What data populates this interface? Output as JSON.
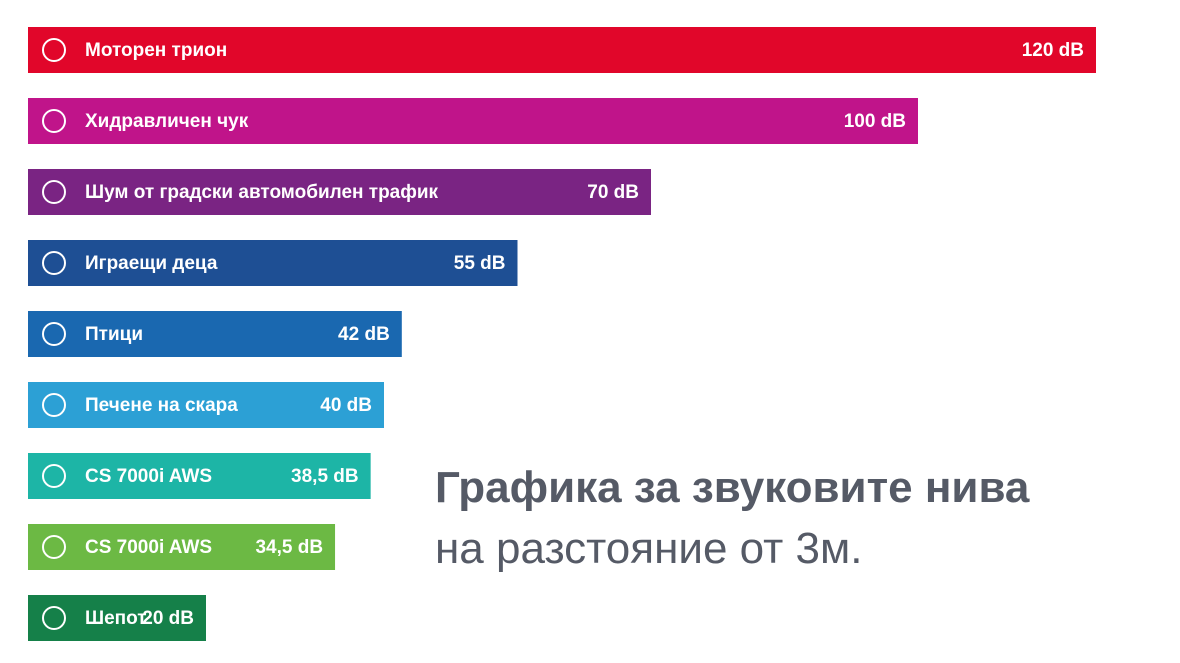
{
  "chart_data": {
    "type": "bar",
    "orientation": "horizontal",
    "title": "Графика за звуковите нива",
    "subtitle": "на разстояние от 3м.",
    "categories": [
      "Моторен трион",
      "Хидравличен чук",
      "Шум от градски автомобилен трафик",
      "Играещи деца",
      "Птици",
      "Печене на скара",
      "CS 7000i AWS",
      "CS 7000i AWS",
      "Шепот"
    ],
    "values": [
      120,
      100,
      70,
      55,
      42,
      40,
      38.5,
      34.5,
      20
    ],
    "value_labels": [
      "120 dB",
      "100 dB",
      "70 dB",
      "55 dB",
      "42 dB",
      "40 dB",
      "38,5 dB",
      "34,5 dB",
      "20 dB"
    ],
    "colors": [
      "#e1062a",
      "#c0148a",
      "#7a2483",
      "#1e4f94",
      "#1a68b0",
      "#2ca0d5",
      "#1db5a6",
      "#6cb944",
      "#158049"
    ],
    "xlim": [
      0,
      120
    ]
  }
}
